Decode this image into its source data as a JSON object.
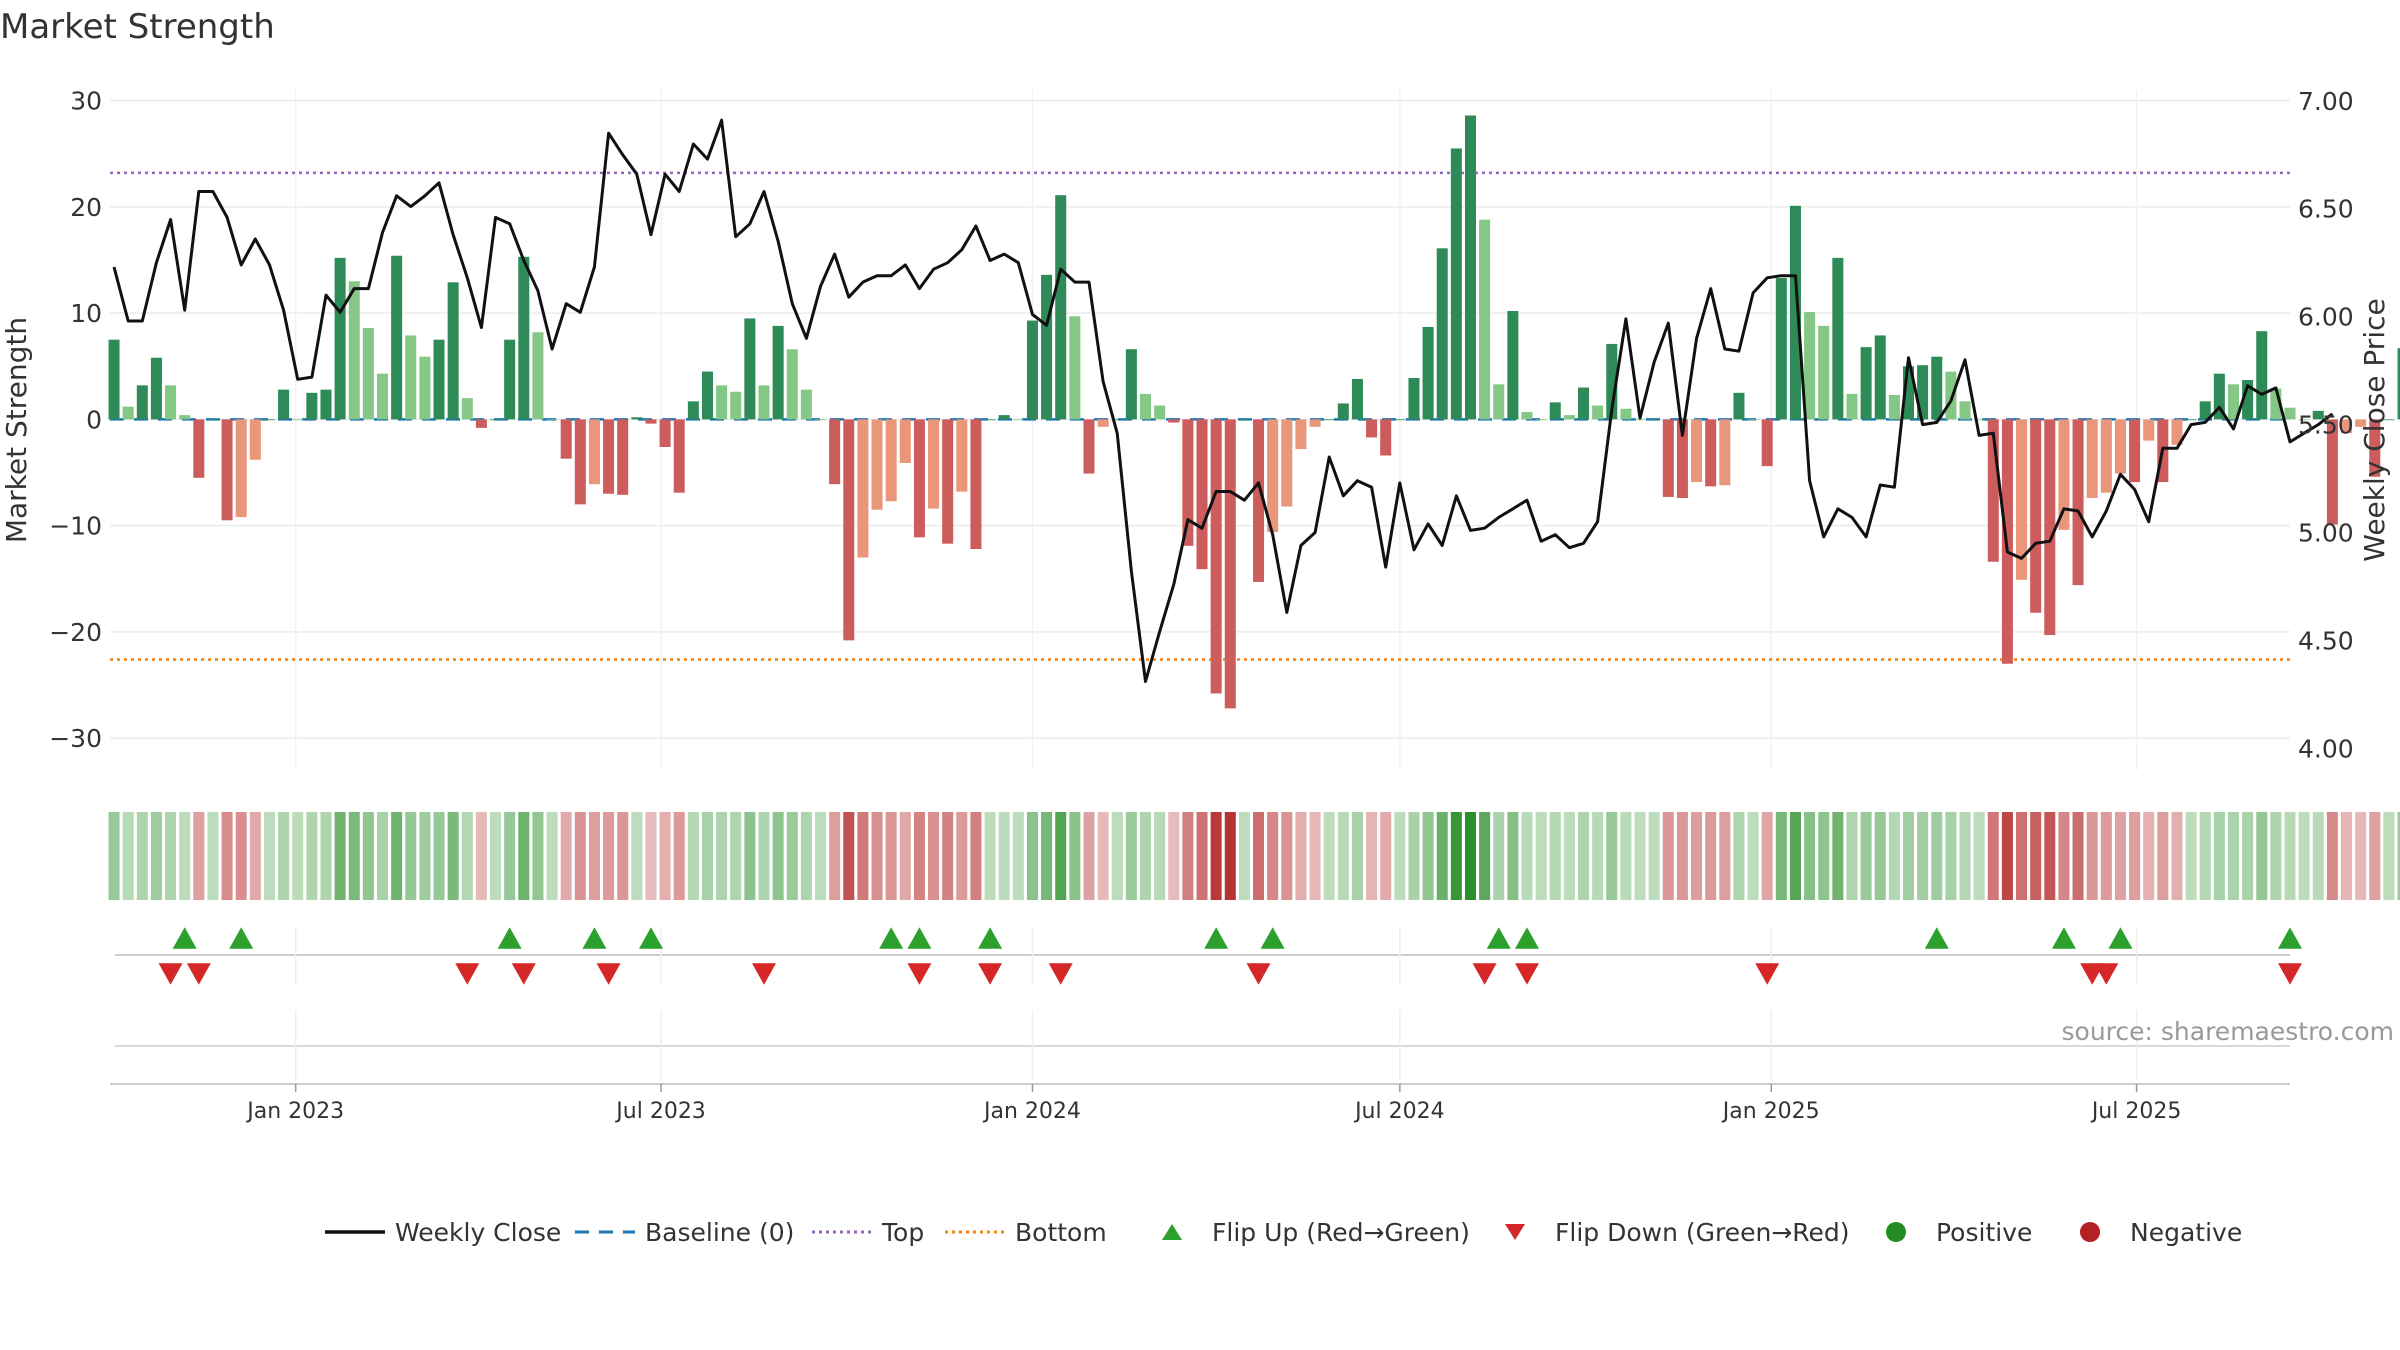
{
  "chart_data": {
    "type": "bar",
    "title": "Market Strength",
    "ylabel_left": "Market Strength",
    "ylabel_right": "Weekly Close Price",
    "ylim_left": [
      -33,
      31
    ],
    "ylim_right": [
      3.9,
      7.05
    ],
    "yticks_left": [
      30,
      20,
      10,
      0,
      -10,
      -20,
      -30
    ],
    "yticks_right": [
      7.0,
      6.5,
      6.0,
      5.5,
      5.0,
      4.5,
      4.0
    ],
    "top_level": 23.2,
    "bottom_level": -22.6,
    "x_date_range": [
      "2022-10-01",
      "2025-09-15"
    ],
    "x_tick_labels": [
      {
        "date": "2023-01-01",
        "label": "Jan 2023"
      },
      {
        "date": "2023-07-01",
        "label": "Jul 2023"
      },
      {
        "date": "2024-01-01",
        "label": "Jan 2024"
      },
      {
        "date": "2024-07-01",
        "label": "Jul 2024"
      },
      {
        "date": "2025-01-01",
        "label": "Jan 2025"
      },
      {
        "date": "2025-07-01",
        "label": "Jul 2025"
      }
    ],
    "series": [
      {
        "name": "Market Strength",
        "start_date": "2022-10-03",
        "interval_days": 7,
        "values": [
          7.5,
          1.2,
          3.2,
          5.8,
          3.2,
          0.4,
          -5.5,
          0,
          -9.5,
          -9.2,
          -3.8,
          0,
          2.8,
          0,
          2.5,
          2.8,
          15.2,
          13,
          8.6,
          4.3,
          15.4,
          7.9,
          5.9,
          7.5,
          12.9,
          2,
          -0.8,
          0,
          7.5,
          15.3,
          8.2,
          0,
          -3.7,
          -8,
          -6.1,
          -7,
          -7.1,
          0.2,
          -0.4,
          -2.6,
          -6.9,
          1.7,
          4.5,
          3.2,
          2.6,
          9.5,
          3.2,
          8.8,
          6.6,
          2.8,
          0,
          -6.1,
          -20.8,
          -13,
          -8.5,
          -7.7,
          -4.1,
          -11.1,
          -8.4,
          -11.7,
          -6.8,
          -12.2,
          0,
          0.4,
          0,
          9.3,
          13.6,
          21.1,
          9.7,
          -5.1,
          -0.7,
          0,
          6.6,
          2.4,
          1.3,
          -0.3,
          -11.9,
          -14.1,
          -25.8,
          -27.2,
          0,
          -15.3,
          -10.6,
          -8.2,
          -2.8,
          -0.7,
          0,
          1.5,
          3.8,
          -1.7,
          -3.4,
          0,
          3.9,
          8.7,
          16.1,
          25.5,
          28.6,
          18.8,
          3.3,
          10.2,
          0.7,
          0,
          1.6,
          0.4,
          3,
          1.3,
          7.1,
          1,
          0,
          0,
          -7.3,
          -7.4,
          -5.9,
          -6.3,
          -6.2,
          2.5,
          0,
          -4.4,
          13.3,
          20.1,
          10.1,
          8.8,
          15.2,
          2.4,
          6.8,
          7.9,
          2.3,
          5,
          5.1,
          5.9,
          4.5,
          1.7,
          0,
          -13.4,
          -23,
          -15.1,
          -18.2,
          -20.3,
          -10.4,
          -15.6,
          -7.4,
          -6.9,
          -5.1,
          -5.9,
          -2,
          -5.9,
          -2.4,
          0,
          1.7,
          4.3,
          3.3,
          3.7,
          8.3,
          2.9,
          1.1,
          0,
          0.8,
          -9.9,
          -1.3,
          -0.7,
          -5.4,
          0,
          6.7,
          8.2,
          26.6,
          27.4,
          19.3,
          20.9,
          14,
          13.8,
          4.6,
          0,
          -2.4,
          1
        ]
      },
      {
        "name": "Weekly Close",
        "start_date": "2022-10-03",
        "interval_days": 7,
        "values": [
          6.23,
          5.98,
          5.98,
          6.25,
          6.45,
          6.03,
          6.58,
          6.58,
          6.46,
          6.24,
          6.36,
          6.24,
          6.03,
          5.71,
          5.72,
          6.1,
          6.02,
          6.13,
          6.13,
          6.39,
          6.56,
          6.51,
          6.56,
          6.62,
          6.38,
          6.18,
          5.95,
          6.46,
          6.43,
          6.26,
          6.12,
          5.85,
          6.06,
          6.02,
          6.23,
          6.85,
          6.75,
          6.66,
          6.38,
          6.66,
          6.58,
          6.8,
          6.73,
          6.91,
          6.37,
          6.43,
          6.58,
          6.35,
          6.06,
          5.9,
          6.14,
          6.29,
          6.09,
          6.16,
          6.19,
          6.19,
          6.24,
          6.13,
          6.22,
          6.25,
          6.31,
          6.42,
          6.26,
          6.29,
          6.25,
          6.01,
          5.96,
          6.22,
          6.16,
          6.16,
          5.7,
          5.46,
          4.82,
          4.31,
          4.54,
          4.76,
          5.06,
          5.02,
          5.19,
          5.19,
          5.15,
          5.23,
          4.99,
          4.63,
          4.94,
          5.0,
          5.35,
          5.17,
          5.24,
          5.21,
          4.84,
          5.23,
          4.92,
          5.04,
          4.94,
          5.17,
          5.01,
          5.02,
          5.07,
          5.11,
          5.15,
          4.96,
          4.99,
          4.93,
          4.95,
          5.05,
          5.57,
          5.99,
          5.53,
          5.79,
          5.97,
          5.45,
          5.9,
          6.13,
          5.85,
          5.84,
          6.11,
          6.18,
          6.19,
          6.19,
          5.24,
          4.98,
          5.11,
          5.07,
          4.98,
          5.22,
          5.21,
          5.81,
          5.5,
          5.51,
          5.61,
          5.8,
          5.45,
          5.46,
          4.91,
          4.88,
          4.95,
          4.96,
          5.11,
          5.1,
          4.98,
          5.1,
          5.27,
          5.2,
          5.05,
          5.39,
          5.39,
          5.5,
          5.51,
          5.58,
          5.48,
          5.68,
          5.64,
          5.67,
          5.42,
          5.46,
          5.5,
          5.55
        ],
        "close_start_index": 1
      }
    ],
    "strip_legend_note": "Positive / Negative strength bands",
    "flip_up_dates": [
      "2022-11-07",
      "2022-12-05",
      "2023-04-17",
      "2023-05-29",
      "2023-06-26",
      "2023-10-23",
      "2023-11-06",
      "2023-12-11",
      "2024-04-01",
      "2024-04-29",
      "2024-08-19",
      "2024-09-02",
      "2025-03-24",
      "2025-05-26",
      "2025-06-23",
      "2025-09-15"
    ],
    "flip_down_dates": [
      "2022-10-31",
      "2022-11-14",
      "2023-03-27",
      "2023-04-24",
      "2023-06-05",
      "2023-08-21",
      "2023-11-06",
      "2023-12-11",
      "2024-01-15",
      "2024-04-22",
      "2024-08-12",
      "2024-09-02",
      "2024-12-30",
      "2025-06-09",
      "2025-06-16",
      "2025-09-15"
    ],
    "legend": [
      {
        "label": "Weekly Close",
        "kind": "line",
        "color": "#111111"
      },
      {
        "label": "Baseline (0)",
        "kind": "dash",
        "color": "#1f77b4"
      },
      {
        "label": "Top",
        "kind": "dot",
        "color": "#9467bd"
      },
      {
        "label": "Bottom",
        "kind": "dot",
        "color": "#ff7f0e"
      },
      {
        "label": "Flip Up (Red→Green)",
        "kind": "up",
        "color": "#2ca02c"
      },
      {
        "label": "Flip Down (Green→Red)",
        "kind": "down",
        "color": "#d62728"
      },
      {
        "label": "Positive",
        "kind": "circle",
        "color": "#228b22"
      },
      {
        "label": "Negative",
        "kind": "circle",
        "color": "#b22222"
      }
    ],
    "source": "source: sharemaestro.com"
  },
  "colors": {
    "pos_strong": "#2e8b57",
    "pos_weak": "#85c785",
    "neg_strong": "#cd5c5c",
    "neg_weak": "#e9967a",
    "close_line": "#111111",
    "baseline": "#1f77b4",
    "top": "#9467bd",
    "bottom": "#ff7f0e",
    "flip_up": "#2ca02c",
    "flip_down": "#d62728",
    "grid": "#ebebeb",
    "text": "#333333"
  }
}
